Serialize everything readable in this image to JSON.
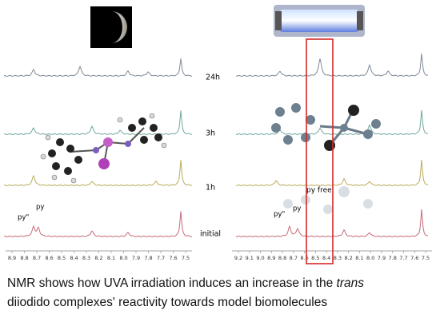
{
  "left_panel": {
    "series_labels": [
      "24h",
      "3h",
      "1h",
      "initial"
    ],
    "peak_labels": [
      "py\"",
      "py"
    ],
    "axis_ticks": [
      "8.9",
      "8.8",
      "8.7",
      "8.6",
      "8.5",
      "8.4",
      "8.3",
      "8.2",
      "8.1",
      "8.0",
      "7.9",
      "7.8",
      "7.7",
      "7.6",
      "7.5"
    ]
  },
  "right_panel": {
    "highlight_label": "py free",
    "peak_labels": [
      "py\"",
      "py"
    ],
    "axis_ticks": [
      "9.2",
      "9.1",
      "9.0",
      "8.9",
      "8.8",
      "8.7",
      "8.6",
      "8.5",
      "8.4",
      "8.3",
      "8.2",
      "8.1",
      "8.0",
      "7.9",
      "7.8",
      "7.7",
      "7.6",
      "7.5"
    ]
  },
  "caption": {
    "line1_start": "NMR shows how UVA irradiation induces an increase in the ",
    "line1_italic": "trans",
    "line2": "diiodido complexes' reactivity towards model biomolecules"
  }
}
